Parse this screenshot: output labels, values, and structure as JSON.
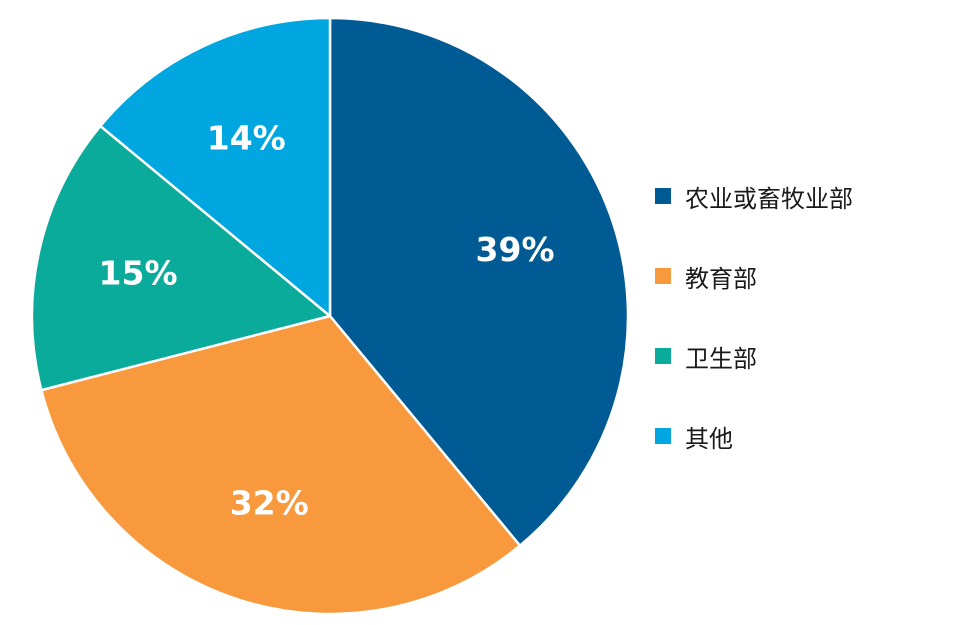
{
  "chart_data": {
    "type": "pie",
    "title": "",
    "categories": [
      "农业或畜牧业部",
      "教育部",
      "卫生部",
      "其他"
    ],
    "values": [
      39,
      32,
      15,
      14
    ],
    "labels": [
      "39%",
      "32%",
      "15%",
      "14%"
    ],
    "colors": [
      "#005b94",
      "#f7993c",
      "#0aab9b",
      "#00a6df"
    ],
    "legend_position": "right",
    "start": "12 o'clock",
    "direction": "clockwise"
  }
}
